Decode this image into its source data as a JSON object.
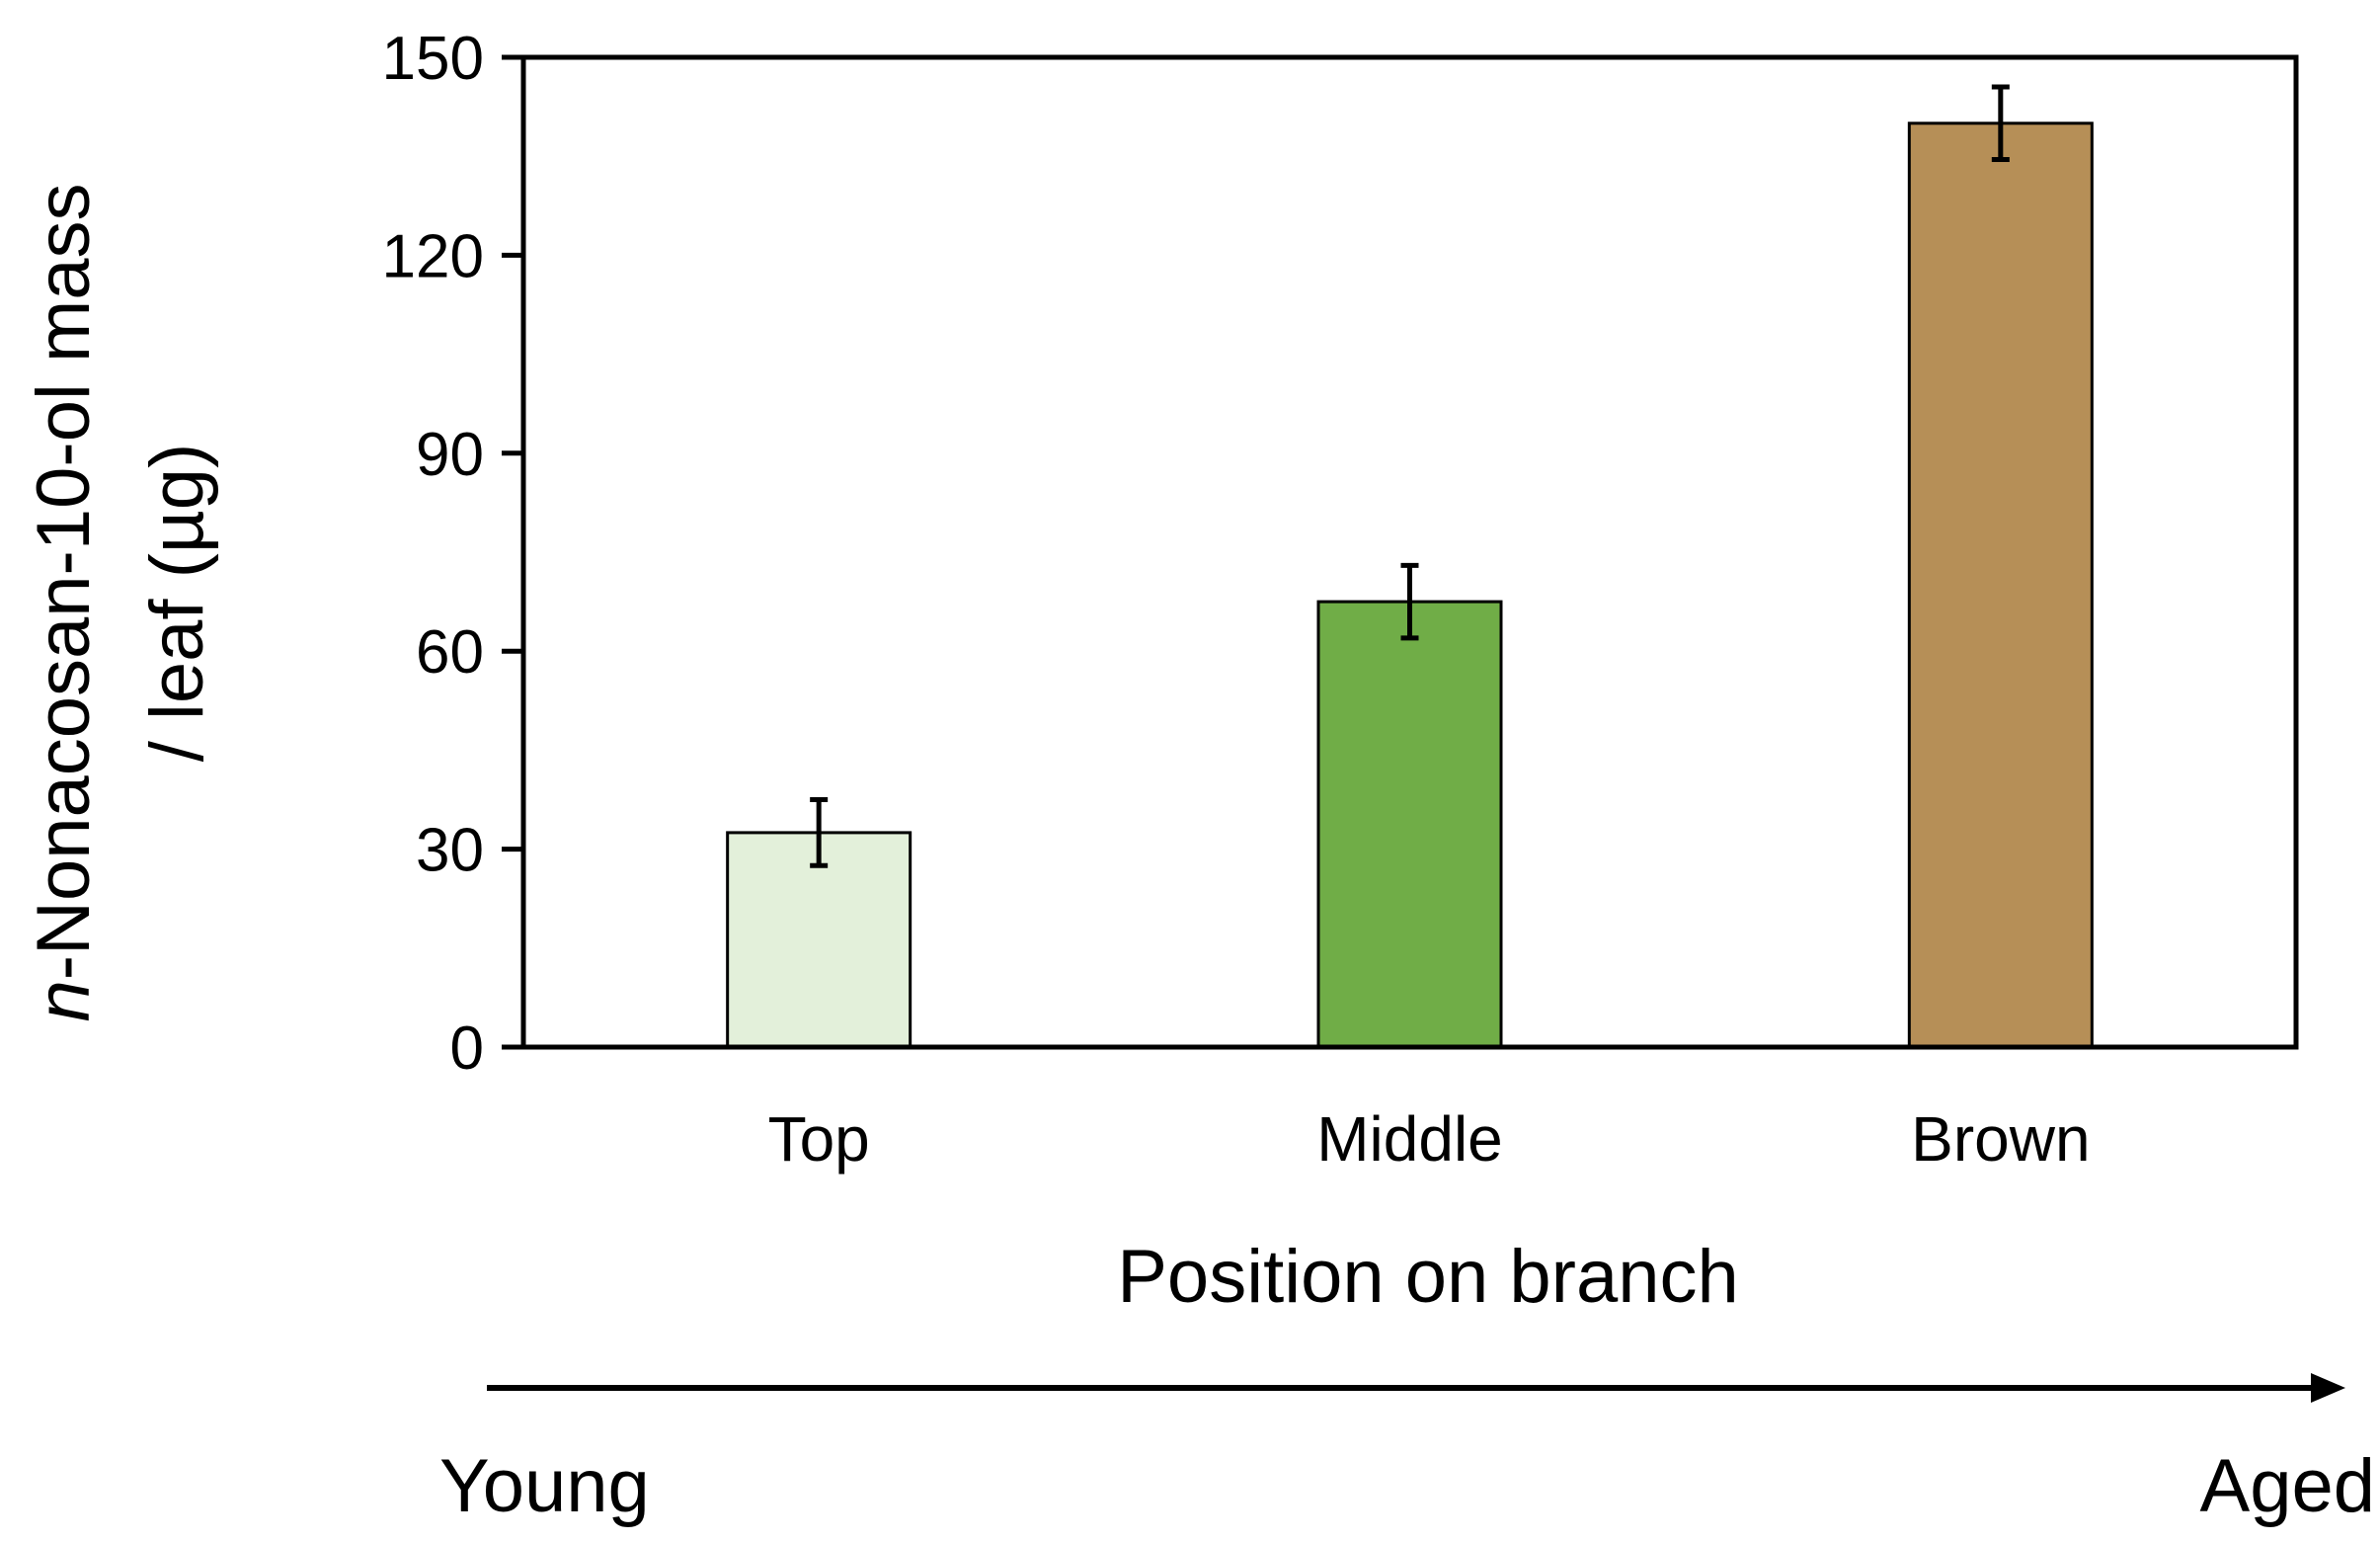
{
  "chart_data": {
    "type": "bar",
    "title": "",
    "categories": [
      "Top",
      "Middle",
      "Brown"
    ],
    "values": [
      32.5,
      67.5,
      140
    ],
    "errors": [
      5,
      5.5,
      5.5
    ],
    "bar_colors": [
      "#e3f0da",
      "#70ad47",
      "#b68f57"
    ],
    "xlabel": "Position on branch",
    "ylabel_line1_italic": "n",
    "ylabel_line1_rest": "-Nonacosan-10-ol mass",
    "ylabel_line2": "/ leaf (µg)",
    "ylim": [
      0,
      150
    ],
    "yticks": [
      "0",
      "30",
      "60",
      "90",
      "120",
      "150"
    ],
    "grid": false,
    "legend": "none"
  },
  "age_axis": {
    "start_label": "Young",
    "end_label": "Aged"
  }
}
